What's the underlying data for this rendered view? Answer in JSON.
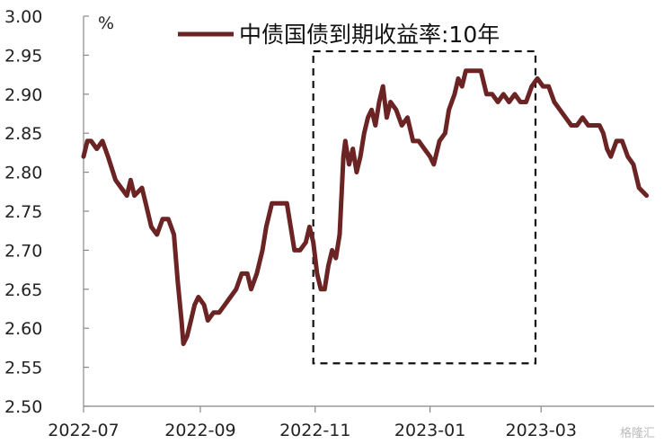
{
  "chart_data": {
    "type": "line",
    "unit": "%",
    "ylim": [
      2.5,
      3.0
    ],
    "y_ticks": [
      "3.00",
      "2.95",
      "2.90",
      "2.85",
      "2.80",
      "2.75",
      "2.70",
      "2.65",
      "2.60",
      "2.55",
      "2.50"
    ],
    "y_tick_values": [
      3.0,
      2.95,
      2.9,
      2.85,
      2.8,
      2.75,
      2.7,
      2.65,
      2.6,
      2.55,
      2.5
    ],
    "x_ticks": [
      "2022-07",
      "2022-09",
      "2022-11",
      "2023-01",
      "2023-03"
    ],
    "x_tick_dates": [
      "2022-07-01",
      "2022-09-01",
      "2022-11-01",
      "2023-01-01",
      "2023-03-01"
    ],
    "xlim": [
      "2022-07-01",
      "2023-04-30"
    ],
    "grid": false,
    "legend_position": "top",
    "series": [
      {
        "name": "中债国债到期收益率:10年",
        "color": "#6b2323",
        "points": [
          [
            "2022-07-01",
            2.82
          ],
          [
            "2022-07-03",
            2.84
          ],
          [
            "2022-07-05",
            2.84
          ],
          [
            "2022-07-08",
            2.83
          ],
          [
            "2022-07-11",
            2.84
          ],
          [
            "2022-07-14",
            2.82
          ],
          [
            "2022-07-18",
            2.79
          ],
          [
            "2022-07-21",
            2.78
          ],
          [
            "2022-07-24",
            2.77
          ],
          [
            "2022-07-26",
            2.79
          ],
          [
            "2022-07-28",
            2.77
          ],
          [
            "2022-08-01",
            2.78
          ],
          [
            "2022-08-03",
            2.76
          ],
          [
            "2022-08-06",
            2.73
          ],
          [
            "2022-08-09",
            2.72
          ],
          [
            "2022-08-12",
            2.74
          ],
          [
            "2022-08-15",
            2.74
          ],
          [
            "2022-08-18",
            2.72
          ],
          [
            "2022-08-20",
            2.66
          ],
          [
            "2022-08-22",
            2.61
          ],
          [
            "2022-08-23",
            2.58
          ],
          [
            "2022-08-25",
            2.59
          ],
          [
            "2022-08-27",
            2.61
          ],
          [
            "2022-08-29",
            2.63
          ],
          [
            "2022-08-31",
            2.64
          ],
          [
            "2022-09-03",
            2.63
          ],
          [
            "2022-09-05",
            2.61
          ],
          [
            "2022-09-08",
            2.62
          ],
          [
            "2022-09-11",
            2.62
          ],
          [
            "2022-09-14",
            2.63
          ],
          [
            "2022-09-17",
            2.64
          ],
          [
            "2022-09-20",
            2.65
          ],
          [
            "2022-09-23",
            2.67
          ],
          [
            "2022-09-26",
            2.67
          ],
          [
            "2022-09-28",
            2.65
          ],
          [
            "2022-10-01",
            2.67
          ],
          [
            "2022-10-04",
            2.7
          ],
          [
            "2022-10-06",
            2.73
          ],
          [
            "2022-10-09",
            2.76
          ],
          [
            "2022-10-13",
            2.76
          ],
          [
            "2022-10-17",
            2.76
          ],
          [
            "2022-10-19",
            2.73
          ],
          [
            "2022-10-21",
            2.7
          ],
          [
            "2022-10-24",
            2.7
          ],
          [
            "2022-10-27",
            2.71
          ],
          [
            "2022-10-29",
            2.73
          ],
          [
            "2022-10-31",
            2.71
          ],
          [
            "2022-11-01",
            2.69
          ],
          [
            "2022-11-02",
            2.67
          ],
          [
            "2022-11-04",
            2.65
          ],
          [
            "2022-11-06",
            2.65
          ],
          [
            "2022-11-08",
            2.68
          ],
          [
            "2022-11-10",
            2.7
          ],
          [
            "2022-11-12",
            2.69
          ],
          [
            "2022-11-14",
            2.72
          ],
          [
            "2022-11-15",
            2.77
          ],
          [
            "2022-11-16",
            2.82
          ],
          [
            "2022-11-17",
            2.84
          ],
          [
            "2022-11-19",
            2.81
          ],
          [
            "2022-11-21",
            2.83
          ],
          [
            "2022-11-23",
            2.8
          ],
          [
            "2022-11-25",
            2.82
          ],
          [
            "2022-11-27",
            2.85
          ],
          [
            "2022-11-29",
            2.87
          ],
          [
            "2022-12-01",
            2.88
          ],
          [
            "2022-12-03",
            2.86
          ],
          [
            "2022-12-05",
            2.89
          ],
          [
            "2022-12-07",
            2.91
          ],
          [
            "2022-12-09",
            2.87
          ],
          [
            "2022-12-11",
            2.89
          ],
          [
            "2022-12-14",
            2.88
          ],
          [
            "2022-12-17",
            2.86
          ],
          [
            "2022-12-20",
            2.87
          ],
          [
            "2022-12-23",
            2.84
          ],
          [
            "2022-12-26",
            2.84
          ],
          [
            "2022-12-29",
            2.83
          ],
          [
            "2023-01-01",
            2.82
          ],
          [
            "2023-01-03",
            2.81
          ],
          [
            "2023-01-06",
            2.84
          ],
          [
            "2023-01-09",
            2.85
          ],
          [
            "2023-01-11",
            2.88
          ],
          [
            "2023-01-14",
            2.9
          ],
          [
            "2023-01-16",
            2.92
          ],
          [
            "2023-01-18",
            2.91
          ],
          [
            "2023-01-20",
            2.93
          ],
          [
            "2023-01-24",
            2.93
          ],
          [
            "2023-01-28",
            2.93
          ],
          [
            "2023-01-31",
            2.9
          ],
          [
            "2023-02-03",
            2.9
          ],
          [
            "2023-02-06",
            2.89
          ],
          [
            "2023-02-09",
            2.9
          ],
          [
            "2023-02-12",
            2.89
          ],
          [
            "2023-02-15",
            2.9
          ],
          [
            "2023-02-18",
            2.89
          ],
          [
            "2023-02-21",
            2.89
          ],
          [
            "2023-02-24",
            2.91
          ],
          [
            "2023-02-27",
            2.92
          ],
          [
            "2023-03-02",
            2.91
          ],
          [
            "2023-03-05",
            2.91
          ],
          [
            "2023-03-08",
            2.89
          ],
          [
            "2023-03-11",
            2.88
          ],
          [
            "2023-03-14",
            2.87
          ],
          [
            "2023-03-17",
            2.86
          ],
          [
            "2023-03-20",
            2.86
          ],
          [
            "2023-03-23",
            2.87
          ],
          [
            "2023-03-26",
            2.86
          ],
          [
            "2023-03-29",
            2.86
          ],
          [
            "2023-04-01",
            2.86
          ],
          [
            "2023-04-03",
            2.85
          ],
          [
            "2023-04-05",
            2.83
          ],
          [
            "2023-04-07",
            2.82
          ],
          [
            "2023-04-10",
            2.84
          ],
          [
            "2023-04-13",
            2.84
          ],
          [
            "2023-04-16",
            2.82
          ],
          [
            "2023-04-19",
            2.81
          ],
          [
            "2023-04-22",
            2.78
          ],
          [
            "2023-04-26",
            2.77
          ]
        ]
      }
    ],
    "annotations": [
      {
        "type": "dashed-box",
        "x_range": [
          "2022-10-31",
          "2023-02-26"
        ],
        "y_range": [
          2.555,
          2.955
        ]
      }
    ]
  },
  "watermark": "格隆汇"
}
